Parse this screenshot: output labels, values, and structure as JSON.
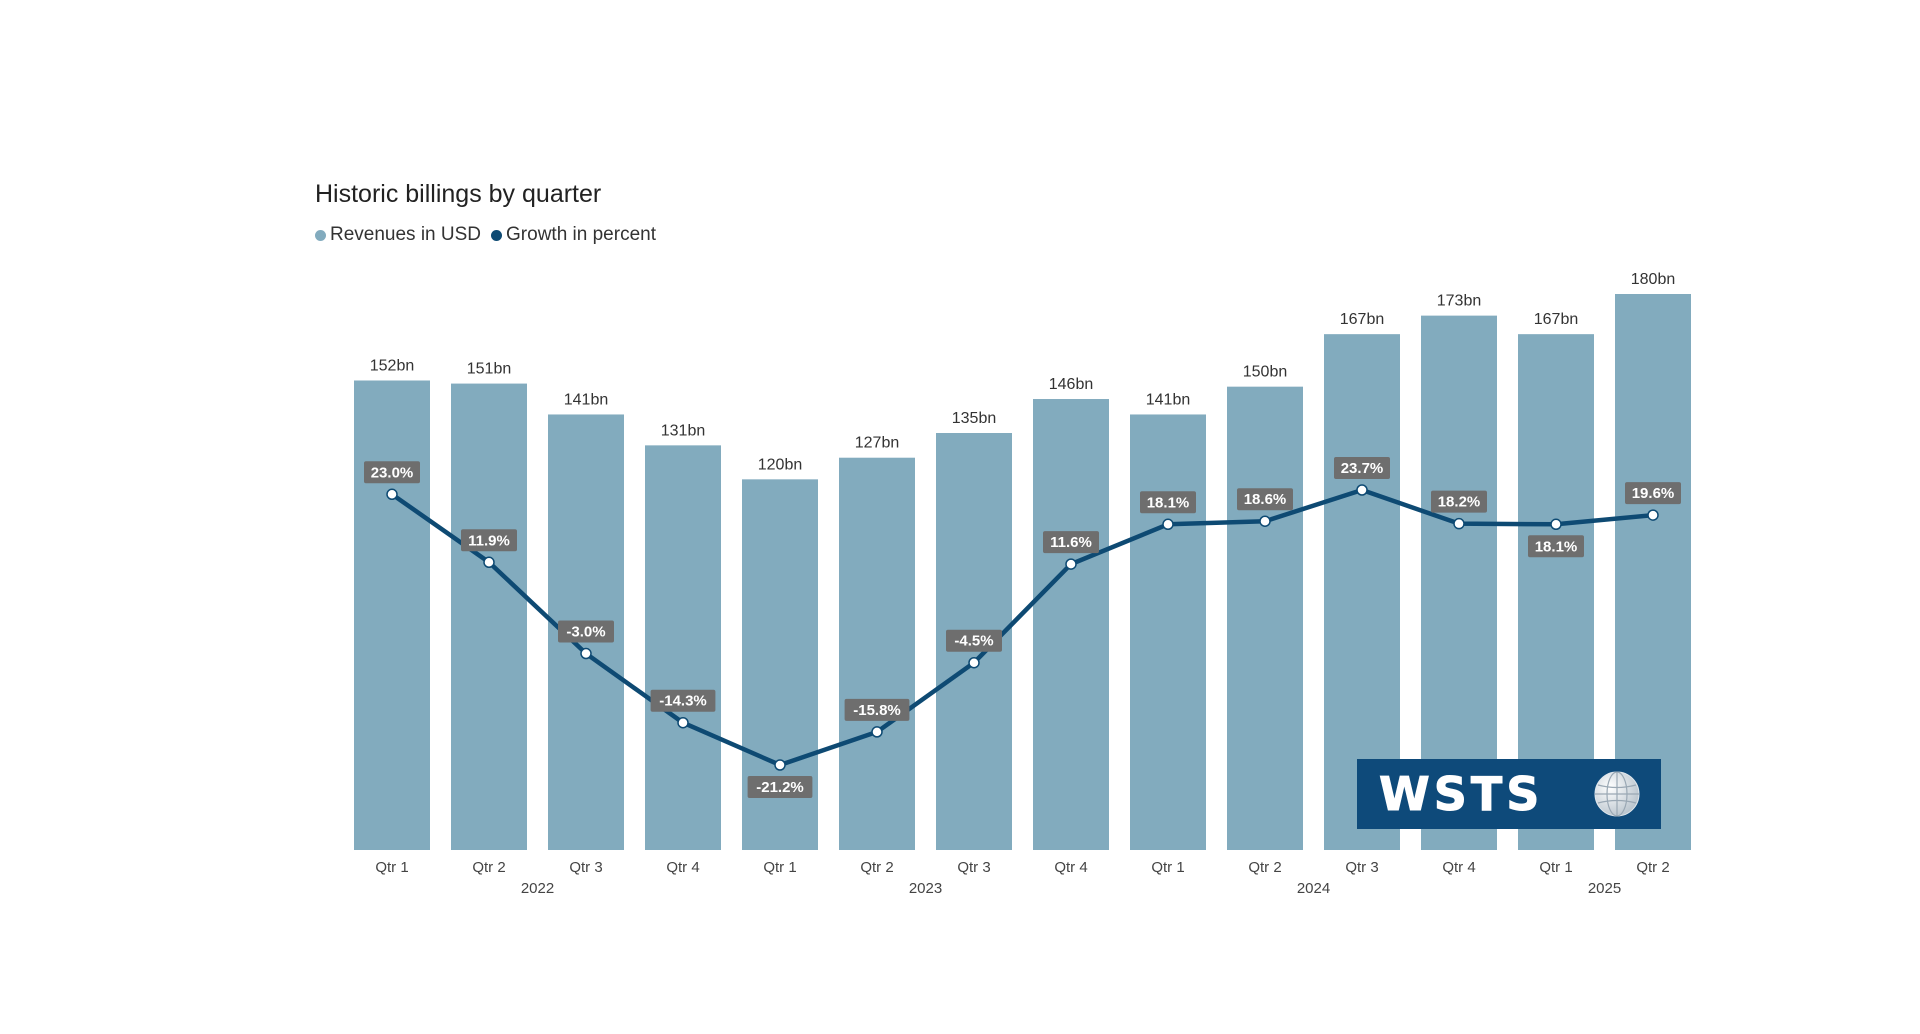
{
  "chart_data": {
    "type": "bar",
    "title": "Historic billings by quarter",
    "legend": [
      {
        "label": "Revenues in USD",
        "color": "#82abbe"
      },
      {
        "label": "Growth in percent",
        "color": "#0e4a73"
      }
    ],
    "categories": [
      "Qtr 1",
      "Qtr 2",
      "Qtr 3",
      "Qtr 4",
      "Qtr 1",
      "Qtr 2",
      "Qtr 3",
      "Qtr 4",
      "Qtr 1",
      "Qtr 2",
      "Qtr 3",
      "Qtr 4",
      "Qtr 1",
      "Qtr 2"
    ],
    "years": [
      {
        "label": "2022",
        "span": [
          0,
          3
        ]
      },
      {
        "label": "2023",
        "span": [
          4,
          7
        ]
      },
      {
        "label": "2024",
        "span": [
          8,
          11
        ]
      },
      {
        "label": "2025",
        "span": [
          12,
          13
        ]
      }
    ],
    "series": [
      {
        "name": "Revenues in USD",
        "type": "bar",
        "color": "#82abbe",
        "values": [
          152,
          151,
          141,
          131,
          120,
          127,
          135,
          146,
          141,
          150,
          167,
          173,
          167,
          180
        ],
        "labels": [
          "152bn",
          "151bn",
          "141bn",
          "131bn",
          "120bn",
          "127bn",
          "135bn",
          "146bn",
          "141bn",
          "150bn",
          "167bn",
          "173bn",
          "167bn",
          "180bn"
        ]
      },
      {
        "name": "Growth in percent",
        "type": "line",
        "color": "#0e4a73",
        "values": [
          23.0,
          11.9,
          -3.0,
          -14.3,
          -21.2,
          -15.8,
          -4.5,
          11.6,
          18.1,
          18.6,
          23.7,
          18.2,
          18.1,
          19.6
        ],
        "labels": [
          "23.0%",
          "11.9%",
          "-3.0%",
          "-14.3%",
          "-21.2%",
          "-15.8%",
          "-4.5%",
          "11.6%",
          "18.1%",
          "18.6%",
          "23.7%",
          "18.2%",
          "18.1%",
          "19.6%"
        ],
        "label_position": [
          "above",
          "above",
          "above",
          "above",
          "below",
          "above",
          "above",
          "above",
          "above",
          "above",
          "above",
          "above",
          "below",
          "above"
        ]
      }
    ],
    "ylim_bars": [
      0,
      180
    ],
    "ylim_line": [
      -25,
      30
    ],
    "grid": false
  },
  "logo": {
    "text": "WSTS",
    "icon": "globe-icon"
  }
}
